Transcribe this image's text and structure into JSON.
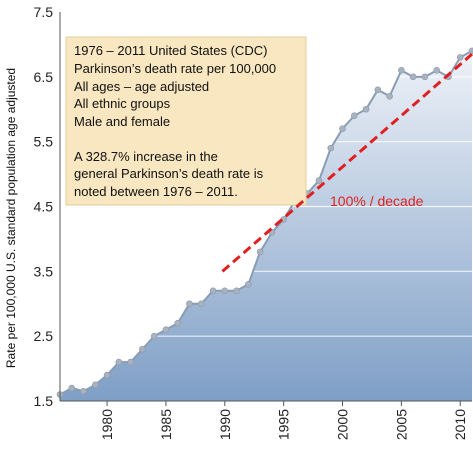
{
  "chart_data": {
    "type": "area",
    "title": "",
    "xlabel": "",
    "ylabel": "Rate per 100,000 U.S. standard population age adjusted",
    "xlim": [
      1976,
      2011
    ],
    "ylim": [
      1.5,
      7.5
    ],
    "x_ticks": [
      "1980",
      "1985",
      "1990",
      "1995",
      "2000",
      "2005",
      "2010"
    ],
    "y_ticks": [
      "1.5",
      "2.5",
      "3.5",
      "4.5",
      "5.5",
      "6.5",
      "7.5"
    ],
    "grid": "horizontal bands",
    "series": [
      {
        "x": [
          1976,
          1977,
          1978,
          1979,
          1980,
          1981,
          1982,
          1983,
          1984,
          1985,
          1986,
          1987,
          1988,
          1989,
          1990,
          1991,
          1992,
          1993,
          1994,
          1995,
          1996,
          1997,
          1998,
          1999,
          2000,
          2001,
          2002,
          2003,
          2004,
          2005,
          2006,
          2007,
          2008,
          2009,
          2010,
          2011
        ],
        "values": [
          1.6,
          1.7,
          1.65,
          1.75,
          1.9,
          2.1,
          2.1,
          2.3,
          2.5,
          2.6,
          2.7,
          3.0,
          3.0,
          3.2,
          3.2,
          3.2,
          3.3,
          3.8,
          4.1,
          4.3,
          4.6,
          4.7,
          4.9,
          5.4,
          5.7,
          5.9,
          6.0,
          6.3,
          6.2,
          6.6,
          6.5,
          6.5,
          6.6,
          6.5,
          6.8,
          6.9
        ]
      }
    ],
    "trend_line": {
      "label": "100% / decade",
      "x": [
        1989.8,
        2011
      ],
      "y": [
        3.5,
        6.85
      ],
      "color": "#e02020",
      "style": "dashed"
    },
    "annotation_box": {
      "lines": [
        "1976 – 2011 United States (CDC)",
        "Parkinson’s death rate per 100,000",
        "All ages – age adjusted",
        "All ethnic groups",
        "Male and female"
      ],
      "note_lines": [
        "A 328.7% increase in the",
        "general Parkinson’s death rate is",
        "noted between 1976 – 2011."
      ]
    },
    "colors": {
      "area_top": "#eef2f8",
      "area_bottom": "#7f9fc6",
      "line": "#8a9cb4",
      "marker": "#a9b3c0",
      "box_fill": "#f8e7c0",
      "box_stroke": "#e4cf9a"
    }
  }
}
